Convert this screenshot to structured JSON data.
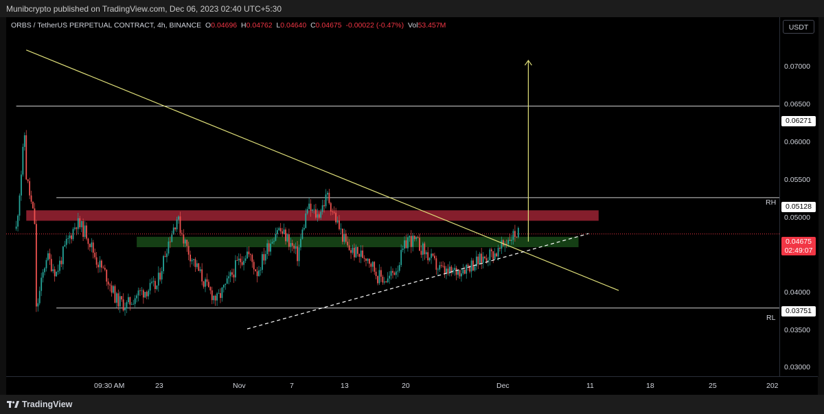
{
  "header": {
    "published": "Munibcrypto published on TradingView.com, Dec 06, 2023 02:40 UTC+5:30"
  },
  "legend": {
    "symbol": "ORBS / TetherUS PERPETUAL CONTRACT, 4h, BINANCE",
    "o_label": "O",
    "o_value": "0.04696",
    "h_label": "H",
    "h_value": "0.04762",
    "l_label": "L",
    "l_value": "0.04640",
    "c_label": "C",
    "c_value": "0.04675",
    "change": "-0.00022 (-0.47%)",
    "vol_label": "Vol",
    "vol_value": "53.457M"
  },
  "price_scale": {
    "currency": "USDT",
    "ticks": [
      "0.07000",
      "0.06500",
      "0.06000",
      "0.05500",
      "0.05000",
      "0.04000",
      "0.03500",
      "0.03000"
    ],
    "badge_high": "0.06271",
    "badge_rh": "0.05128",
    "badge_current": "0.04675",
    "badge_countdown": "02:49:07",
    "badge_rl": "0.03751"
  },
  "time_scale": {
    "ticks": [
      "09:30 AM",
      "23",
      "Nov",
      "7",
      "13",
      "20",
      "Dec",
      "11",
      "18",
      "25",
      "202"
    ]
  },
  "annotations": {
    "rh": "RH",
    "rl": "RL"
  },
  "footer": {
    "brand": "TradingView"
  },
  "colors": {
    "up": "#26a69a",
    "down": "#ef5350",
    "trendline": "#e0e07a",
    "resistance_zone": "#b2283b",
    "support_zone": "#1e5a1e",
    "level_line": "#cfcfcf",
    "current_price": "#f23645"
  },
  "chart_data": {
    "type": "candlestick",
    "symbol": "ORBS / TetherUS PERPETUAL CONTRACT",
    "interval": "4h",
    "exchange": "BINANCE",
    "ylim": [
      0.029,
      0.0738
    ],
    "x_range": [
      "2023-10-16",
      "2024-01-01"
    ],
    "x_ticks": [
      "09:30 AM",
      "23",
      "Nov",
      "7",
      "13",
      "20",
      "Dec",
      "11",
      "18",
      "25",
      "202"
    ],
    "last_close": 0.04675,
    "horizontal_levels": [
      {
        "price": 0.06271
      },
      {
        "price": 0.05128,
        "label": "RH"
      },
      {
        "price": 0.03751,
        "label": "RL"
      }
    ],
    "zones": [
      {
        "kind": "resistance",
        "low": 0.0484,
        "high": 0.0497,
        "from": "2023-10-18",
        "to": "2023-12-14"
      },
      {
        "kind": "support",
        "low": 0.0451,
        "high": 0.0464,
        "from": "2023-10-29",
        "to": "2023-12-12"
      }
    ],
    "trendlines": [
      {
        "style": "solid",
        "from": [
          "2023-10-18",
          0.0697
        ],
        "to": [
          "2023-12-16",
          0.0397
        ]
      },
      {
        "style": "dashed",
        "from": [
          "2023-11-09",
          0.0349
        ],
        "to": [
          "2023-12-13",
          0.0468
        ]
      }
    ],
    "target_arrow": {
      "date": "2023-12-07",
      "from": 0.0458,
      "to": 0.0684
    },
    "price_path": [
      {
        "date": "2023-10-17",
        "price": 0.0474
      },
      {
        "date": "2023-10-18",
        "price": 0.0615
      },
      {
        "date": "2023-10-18",
        "price": 0.054
      },
      {
        "date": "2023-10-19",
        "price": 0.047
      },
      {
        "date": "2023-10-19",
        "price": 0.0372
      },
      {
        "date": "2023-10-20",
        "price": 0.044
      },
      {
        "date": "2023-10-21",
        "price": 0.0419
      },
      {
        "date": "2023-10-22",
        "price": 0.0455
      },
      {
        "date": "2023-10-23",
        "price": 0.0482
      },
      {
        "date": "2023-10-24",
        "price": 0.0468
      },
      {
        "date": "2023-10-25",
        "price": 0.0435
      },
      {
        "date": "2023-10-26",
        "price": 0.0415
      },
      {
        "date": "2023-10-27",
        "price": 0.0385
      },
      {
        "date": "2023-10-28",
        "price": 0.0378
      },
      {
        "date": "2023-10-29",
        "price": 0.0392
      },
      {
        "date": "2023-10-30",
        "price": 0.0398
      },
      {
        "date": "2023-10-31",
        "price": 0.0402
      },
      {
        "date": "2023-11-01",
        "price": 0.0452
      },
      {
        "date": "2023-11-02",
        "price": 0.0488
      },
      {
        "date": "2023-11-03",
        "price": 0.045
      },
      {
        "date": "2023-11-04",
        "price": 0.0425
      },
      {
        "date": "2023-11-05",
        "price": 0.04
      },
      {
        "date": "2023-11-06",
        "price": 0.0385
      },
      {
        "date": "2023-11-07",
        "price": 0.0405
      },
      {
        "date": "2023-11-08",
        "price": 0.043
      },
      {
        "date": "2023-11-09",
        "price": 0.0445
      },
      {
        "date": "2023-11-10",
        "price": 0.042
      },
      {
        "date": "2023-11-11",
        "price": 0.045
      },
      {
        "date": "2023-11-12",
        "price": 0.0475
      },
      {
        "date": "2023-11-13",
        "price": 0.0462
      },
      {
        "date": "2023-11-14",
        "price": 0.044
      },
      {
        "date": "2023-11-15",
        "price": 0.05
      },
      {
        "date": "2023-11-16",
        "price": 0.049
      },
      {
        "date": "2023-11-17",
        "price": 0.0515
      },
      {
        "date": "2023-11-18",
        "price": 0.048
      },
      {
        "date": "2023-11-19",
        "price": 0.045
      },
      {
        "date": "2023-11-20",
        "price": 0.0442
      },
      {
        "date": "2023-11-21",
        "price": 0.044
      },
      {
        "date": "2023-11-22",
        "price": 0.0415
      },
      {
        "date": "2023-11-23",
        "price": 0.041
      },
      {
        "date": "2023-11-24",
        "price": 0.0428
      },
      {
        "date": "2023-11-25",
        "price": 0.0462
      },
      {
        "date": "2023-11-26",
        "price": 0.0455
      },
      {
        "date": "2023-11-27",
        "price": 0.044
      },
      {
        "date": "2023-11-28",
        "price": 0.0425
      },
      {
        "date": "2023-11-29",
        "price": 0.0418
      },
      {
        "date": "2023-11-30",
        "price": 0.0422
      },
      {
        "date": "2023-12-01",
        "price": 0.0428
      },
      {
        "date": "2023-12-02",
        "price": 0.0433
      },
      {
        "date": "2023-12-03",
        "price": 0.0442
      },
      {
        "date": "2023-12-04",
        "price": 0.0445
      },
      {
        "date": "2023-12-05",
        "price": 0.0462
      },
      {
        "date": "2023-12-06",
        "price": 0.047
      },
      {
        "date": "2023-12-06",
        "price": 0.04675
      }
    ]
  }
}
